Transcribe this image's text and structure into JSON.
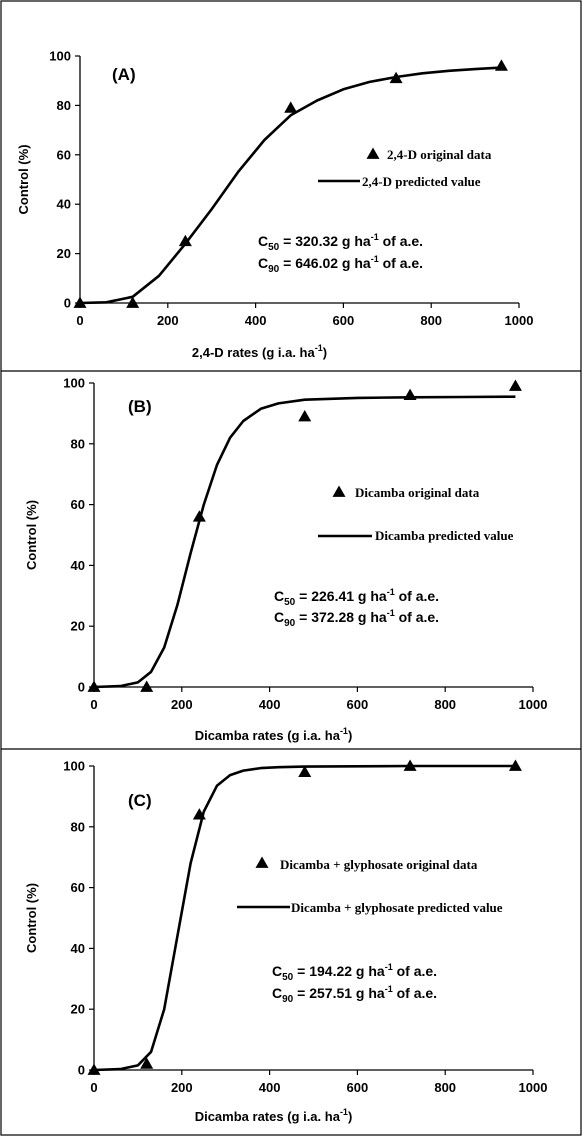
{
  "chart_data": [
    {
      "type": "scatter",
      "panel_label": "(A)",
      "xlabel": "2,4-D rates (g i.a. ha",
      "xlabel_sup": "-1",
      "xlabel_end": ")",
      "ylabel": "Control (%)",
      "xlim": [
        0,
        1000
      ],
      "ylim": [
        0,
        100
      ],
      "xticks": [
        "0",
        "200",
        "400",
        "600",
        "800",
        "1000"
      ],
      "yticks": [
        "0",
        "20",
        "40",
        "60",
        "80",
        "100"
      ],
      "x_tick_values": [
        0,
        200,
        400,
        600,
        800,
        1000
      ],
      "y_tick_values": [
        0,
        20,
        40,
        60,
        80,
        100
      ],
      "series": [
        {
          "name": "2,4-D original data",
          "marker": "triangle",
          "x": [
            0,
            120,
            240,
            480,
            720,
            960
          ],
          "y": [
            0,
            0,
            25,
            79,
            91,
            96
          ]
        },
        {
          "name": "2,4-D predicted value",
          "style": "line",
          "x": [
            0,
            60,
            120,
            180,
            240,
            300,
            360,
            420,
            480,
            540,
            600,
            660,
            720,
            780,
            840,
            900,
            960
          ],
          "y": [
            0,
            0.3,
            2.5,
            11,
            24,
            38,
            53,
            66,
            76,
            82,
            86.5,
            89.5,
            91.5,
            93,
            94,
            94.7,
            95.3
          ]
        }
      ],
      "annotations": [
        {
          "prefix": "C",
          "sub": "50",
          "value": " = 320.32 g ha",
          "sup": "-1",
          "suffix": " of a.e."
        },
        {
          "prefix": "C",
          "sub": "90",
          "value": " = 646.02 g ha",
          "sup": "-1",
          "suffix": " of a.e."
        }
      ],
      "grid": false,
      "legend_position": "center-right"
    },
    {
      "type": "scatter",
      "panel_label": "(B)",
      "xlabel": "Dicamba rates (g i.a. ha",
      "xlabel_sup": "-1",
      "xlabel_end": ")",
      "ylabel": "Control (%)",
      "xlim": [
        0,
        1000
      ],
      "ylim": [
        0,
        100
      ],
      "xticks": [
        "0",
        "200",
        "400",
        "600",
        "800",
        "1000"
      ],
      "yticks": [
        "0",
        "20",
        "40",
        "60",
        "80",
        "100"
      ],
      "x_tick_values": [
        0,
        200,
        400,
        600,
        800,
        1000
      ],
      "y_tick_values": [
        0,
        20,
        40,
        60,
        80,
        100
      ],
      "series": [
        {
          "name": "Dicamba original data",
          "marker": "triangle",
          "x": [
            0,
            120,
            240,
            480,
            720,
            960
          ],
          "y": [
            0,
            0,
            56,
            89,
            96,
            99
          ]
        },
        {
          "name": "Dicamba predicted value",
          "style": "line",
          "x": [
            0,
            60,
            100,
            130,
            160,
            190,
            220,
            250,
            280,
            310,
            340,
            380,
            420,
            480,
            600,
            720,
            840,
            960
          ],
          "y": [
            0,
            0.3,
            1.5,
            5,
            13,
            27,
            44,
            60,
            73,
            82,
            87.5,
            91.5,
            93.3,
            94.5,
            95.1,
            95.3,
            95.4,
            95.5
          ]
        }
      ],
      "annotations": [
        {
          "prefix": "C",
          "sub": "50",
          "value": " = 226.41 g ha",
          "sup": "-1",
          "suffix": " of a.e."
        },
        {
          "prefix": "C",
          "sub": "90",
          "value": " = 372.28 g ha",
          "sup": "-1",
          "suffix": " of a.e."
        }
      ],
      "grid": false,
      "legend_position": "center-right"
    },
    {
      "type": "scatter",
      "panel_label": "(C)",
      "xlabel": "Dicamba rates (g i.a. ha",
      "xlabel_sup": "-1",
      "xlabel_end": ")",
      "ylabel": "Control (%)",
      "xlim": [
        0,
        1000
      ],
      "ylim": [
        0,
        100
      ],
      "xticks": [
        "0",
        "200",
        "400",
        "600",
        "800",
        "1000"
      ],
      "yticks": [
        "0",
        "20",
        "40",
        "60",
        "80",
        "100"
      ],
      "x_tick_values": [
        0,
        200,
        400,
        600,
        800,
        1000
      ],
      "y_tick_values": [
        0,
        20,
        40,
        60,
        80,
        100
      ],
      "series": [
        {
          "name": "Dicamba + glyphosate original data",
          "marker": "triangle",
          "x": [
            0,
            120,
            240,
            480,
            720,
            960
          ],
          "y": [
            0,
            2,
            84,
            98,
            100,
            100
          ]
        },
        {
          "name": "Dicamba + glyphosate predicted value",
          "style": "line",
          "x": [
            0,
            60,
            100,
            130,
            160,
            190,
            220,
            250,
            280,
            310,
            340,
            380,
            420,
            480,
            600,
            720,
            840,
            960
          ],
          "y": [
            0,
            0.3,
            1.5,
            6,
            20,
            44,
            68,
            85,
            93.5,
            97,
            98.5,
            99.3,
            99.6,
            99.8,
            99.9,
            100,
            100,
            100
          ]
        }
      ],
      "annotations": [
        {
          "prefix": "C",
          "sub": "50",
          "value": " = 194.22 g ha",
          "sup": "-1",
          "suffix": " of a.e."
        },
        {
          "prefix": "C",
          "sub": "90",
          "value": " = 257.51 g ha",
          "sup": "-1",
          "suffix": " of a.e."
        }
      ],
      "grid": false,
      "legend_position": "center-right"
    }
  ]
}
